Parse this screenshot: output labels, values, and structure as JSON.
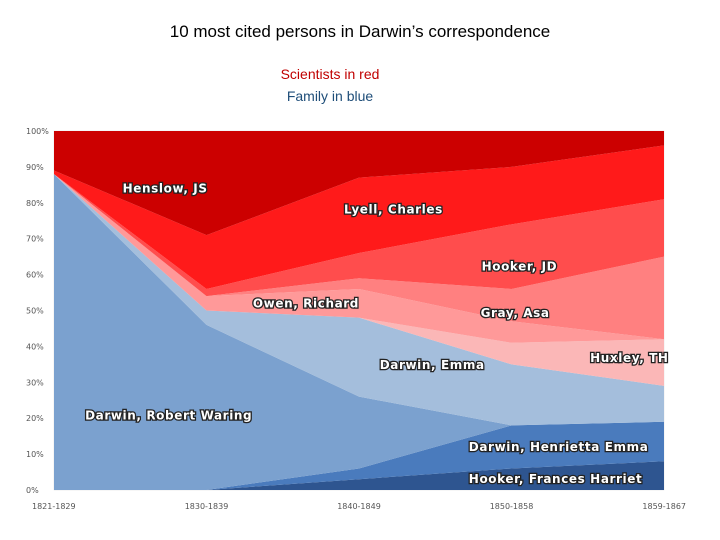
{
  "title": "10 most cited persons in Darwin’s correspondence",
  "subtitle_scientists": "Scientists in red",
  "subtitle_family": "Family in blue",
  "chart_data": {
    "type": "area",
    "stacking": "percent",
    "title": "10 most cited persons in Darwin’s correspondence",
    "categories": [
      "1821-1829",
      "1830-1839",
      "1840-1849",
      "1850-1858",
      "1859-1867"
    ],
    "y_ticks": [
      "0%",
      "10%",
      "20%",
      "30%",
      "40%",
      "50%",
      "60%",
      "70%",
      "80%",
      "90%",
      "100%"
    ],
    "ylim": [
      0,
      100
    ],
    "grid": false,
    "legend": "none",
    "series": [
      {
        "name": "Hooker, Frances Harriet",
        "color": "#2e5590",
        "values": [
          0,
          0,
          3,
          6,
          8
        ]
      },
      {
        "name": "Darwin, Henrietta Emma",
        "color": "#4a7bbd",
        "values": [
          0,
          0,
          3,
          12,
          11
        ]
      },
      {
        "name": "Darwin, Robert Waring",
        "color": "#7ba1cf",
        "values": [
          88,
          46,
          20,
          0,
          0
        ]
      },
      {
        "name": "Darwin, Emma",
        "color": "#a4bedc",
        "values": [
          0,
          4,
          22,
          17,
          10
        ]
      },
      {
        "name": "Huxley, TH",
        "color": "#fbb7b7",
        "values": [
          0,
          0,
          0,
          6,
          13
        ]
      },
      {
        "name": "Owen, Richard",
        "color": "#ff9999",
        "values": [
          0,
          4,
          8,
          6,
          0
        ]
      },
      {
        "name": "Gray, Asa",
        "color": "#ff8080",
        "values": [
          0,
          0,
          3,
          9,
          23
        ]
      },
      {
        "name": "Hooker, JD",
        "color": "#ff4d4d",
        "values": [
          0,
          2,
          7,
          18,
          16
        ]
      },
      {
        "name": "Lyell, Charles",
        "color": "#ff1a1a",
        "values": [
          1,
          15,
          21,
          16,
          15
        ]
      },
      {
        "name": "Henslow, JS",
        "color": "#cc0000",
        "values": [
          11,
          29,
          13,
          10,
          4
        ]
      }
    ],
    "top_band_color": "#b30000"
  }
}
